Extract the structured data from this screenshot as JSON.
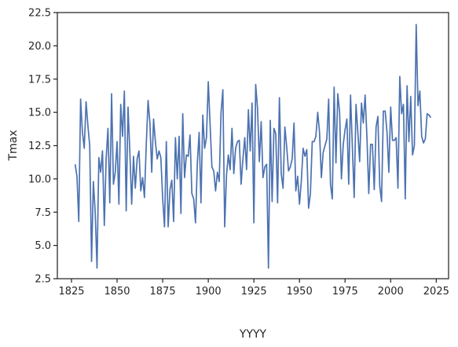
{
  "chart_data": {
    "type": "line",
    "xlabel": "YYYY",
    "ylabel": "Tmax",
    "x": [
      1827,
      1828,
      1829,
      1830,
      1831,
      1832,
      1833,
      1834,
      1835,
      1836,
      1837,
      1838,
      1839,
      1840,
      1841,
      1842,
      1843,
      1844,
      1845,
      1846,
      1847,
      1848,
      1849,
      1850,
      1851,
      1852,
      1853,
      1854,
      1855,
      1856,
      1857,
      1858,
      1859,
      1860,
      1861,
      1862,
      1863,
      1864,
      1865,
      1866,
      1867,
      1868,
      1869,
      1870,
      1871,
      1872,
      1873,
      1874,
      1875,
      1876,
      1877,
      1878,
      1879,
      1880,
      1881,
      1882,
      1883,
      1884,
      1885,
      1886,
      1887,
      1888,
      1889,
      1890,
      1891,
      1892,
      1893,
      1894,
      1895,
      1896,
      1897,
      1898,
      1899,
      1900,
      1901,
      1902,
      1903,
      1904,
      1905,
      1906,
      1907,
      1908,
      1909,
      1910,
      1911,
      1912,
      1913,
      1914,
      1915,
      1916,
      1917,
      1918,
      1919,
      1920,
      1921,
      1922,
      1923,
      1924,
      1925,
      1926,
      1927,
      1928,
      1929,
      1930,
      1931,
      1932,
      1933,
      1934,
      1935,
      1936,
      1937,
      1938,
      1939,
      1940,
      1941,
      1942,
      1943,
      1944,
      1945,
      1946,
      1947,
      1948,
      1949,
      1950,
      1951,
      1952,
      1953,
      1954,
      1955,
      1956,
      1957,
      1958,
      1959,
      1960,
      1961,
      1962,
      1963,
      1964,
      1965,
      1966,
      1967,
      1968,
      1969,
      1970,
      1971,
      1972,
      1973,
      1974,
      1975,
      1976,
      1977,
      1978,
      1979,
      1980,
      1981,
      1982,
      1983,
      1984,
      1985,
      1986,
      1987,
      1988,
      1989,
      1990,
      1991,
      1992,
      1993,
      1994,
      1995,
      1996,
      1997,
      1998,
      1999,
      2000,
      2001,
      2002,
      2003,
      2004,
      2005,
      2006,
      2007,
      2008,
      2009,
      2010,
      2011,
      2012,
      2013,
      2014,
      2015,
      2016,
      2017,
      2018,
      2019,
      2020,
      2021,
      2022
    ],
    "series": [
      {
        "color": "#4c72b0",
        "values": [
          11.1,
          10.2,
          6.8,
          16.0,
          13.5,
          12.3,
          15.8,
          14.0,
          12.5,
          3.8,
          9.8,
          7.5,
          3.3,
          11.6,
          10.5,
          12.1,
          6.5,
          11.5,
          13.8,
          8.2,
          16.4,
          9.6,
          10.5,
          12.8,
          8.1,
          15.6,
          13.2,
          16.6,
          7.6,
          15.4,
          12.0,
          8.1,
          11.7,
          9.3,
          11.5,
          12.1,
          9.1,
          10.1,
          8.6,
          12.6,
          15.9,
          14.2,
          10.5,
          14.5,
          12.8,
          11.5,
          12.1,
          11.6,
          8.5,
          6.4,
          12.8,
          6.4,
          9.2,
          9.9,
          6.8,
          13.1,
          10.0,
          13.2,
          7.4,
          14.9,
          10.1,
          11.8,
          11.7,
          13.3,
          8.9,
          8.5,
          6.7,
          11.2,
          13.5,
          8.2,
          14.8,
          12.3,
          13.1,
          17.3,
          14.1,
          10.9,
          10.6,
          9.1,
          10.5,
          9.8,
          15.0,
          16.7,
          6.4,
          10.3,
          11.8,
          10.7,
          13.8,
          10.4,
          12.3,
          12.8,
          12.9,
          9.6,
          11.5,
          13.1,
          10.7,
          15.2,
          12.1,
          15.7,
          6.7,
          17.1,
          15.3,
          11.3,
          14.3,
          10.1,
          10.9,
          11.1,
          3.3,
          14.4,
          8.3,
          13.8,
          13.4,
          8.2,
          16.1,
          10.4,
          9.3,
          13.9,
          12.4,
          10.6,
          10.9,
          11.5,
          14.2,
          9.1,
          10.2,
          8.1,
          9.8,
          12.3,
          11.7,
          12.2,
          7.8,
          8.9,
          12.8,
          12.8,
          13.2,
          15.0,
          13.5,
          10.1,
          12.0,
          12.5,
          13.0,
          16.0,
          9.6,
          8.5,
          16.9,
          11.2,
          16.4,
          15.0,
          10.0,
          12.6,
          13.7,
          14.5,
          9.6,
          16.3,
          12.4,
          8.6,
          15.6,
          13.5,
          11.3,
          15.7,
          14.2,
          16.3,
          13.1,
          8.9,
          12.6,
          12.6,
          9.2,
          13.9,
          14.7,
          9.5,
          8.3,
          15.1,
          15.1,
          13.5,
          10.5,
          15.4,
          12.9,
          12.9,
          13.1,
          9.3,
          17.7,
          14.9,
          15.6,
          8.5,
          17.0,
          12.8,
          16.2,
          11.8,
          12.5,
          21.6,
          15.5,
          16.6,
          13.2,
          12.7,
          13.0,
          14.9,
          14.8,
          14.6
        ]
      }
    ],
    "xlim": [
      1817.25,
      2031.75
    ],
    "xticks": [
      1825,
      1850,
      1875,
      1900,
      1925,
      1950,
      1975,
      2000,
      2025
    ],
    "ylim": [
      2.5,
      22.5
    ],
    "yticks": [
      2.5,
      {
        "value": 5,
        "label": "5.0"
      },
      7.5,
      {
        "value": 10,
        "label": "10.0"
      },
      12.5,
      {
        "value": 15,
        "label": "15.0"
      },
      17.5,
      {
        "value": 20,
        "label": "20.0"
      },
      22.5
    ]
  }
}
